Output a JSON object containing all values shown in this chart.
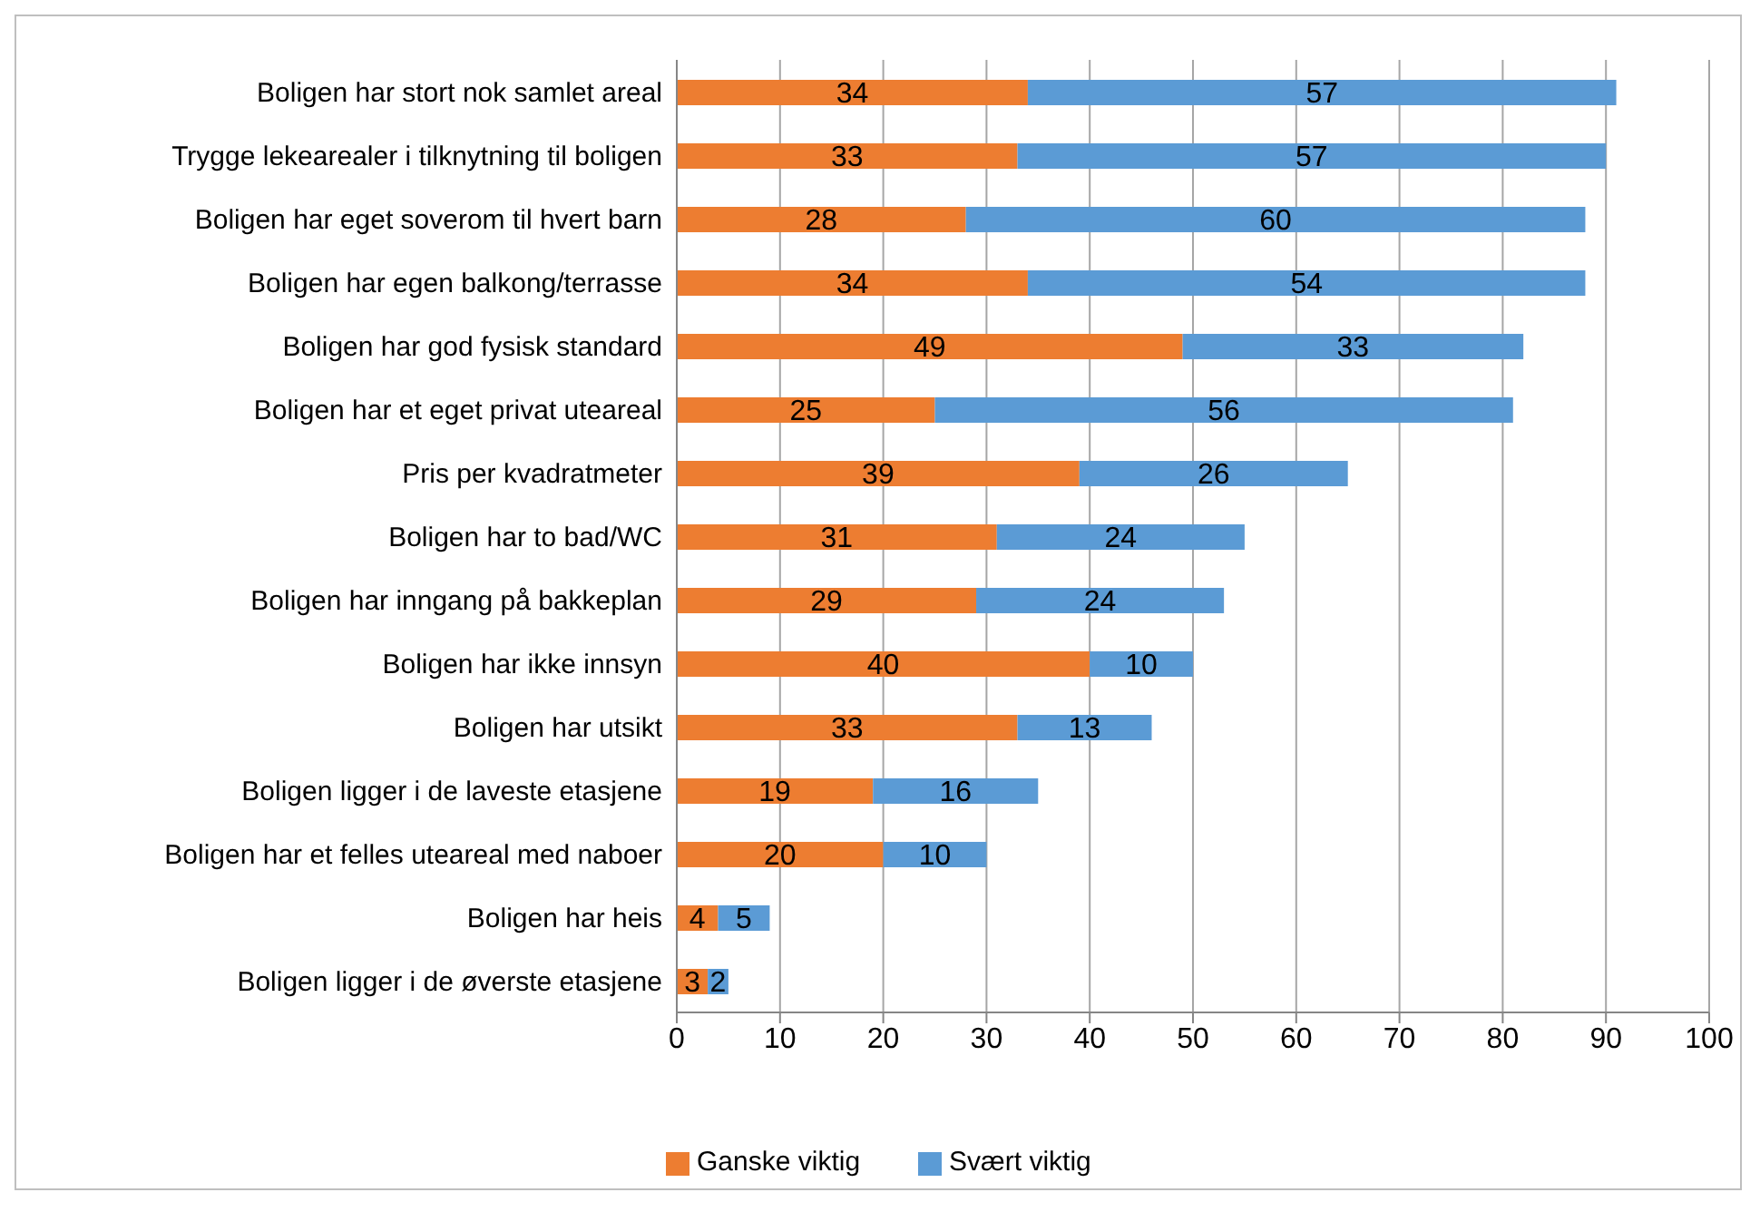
{
  "chart_data": {
    "type": "bar",
    "orientation": "horizontal",
    "stacked": true,
    "categories": [
      "Boligen har stort nok samlet areal",
      "Trygge lekearealer i tilknytning til boligen",
      "Boligen har eget soverom til hvert barn",
      "Boligen har egen balkong/terrasse",
      "Boligen har god fysisk standard",
      "Boligen har et eget privat uteareal",
      "Pris per kvadratmeter",
      "Boligen har to bad/WC",
      "Boligen har inngang på bakkeplan",
      "Boligen har ikke innsyn",
      "Boligen har utsikt",
      "Boligen ligger i de laveste etasjene",
      "Boligen har et felles uteareal med naboer",
      "Boligen har heis",
      "Boligen ligger i de øverste etasjene"
    ],
    "series": [
      {
        "name": "Ganske viktig",
        "color": "#ed7d31",
        "values": [
          34,
          33,
          28,
          34,
          49,
          25,
          39,
          31,
          29,
          40,
          33,
          19,
          20,
          4,
          3
        ]
      },
      {
        "name": "Svært viktig",
        "color": "#5b9bd5",
        "values": [
          57,
          57,
          60,
          54,
          33,
          56,
          26,
          24,
          24,
          10,
          13,
          16,
          10,
          5,
          2
        ]
      }
    ],
    "xlim": [
      0,
      100
    ],
    "xticks": [
      0,
      10,
      20,
      30,
      40,
      50,
      60,
      70,
      80,
      90,
      100
    ],
    "grid": "x",
    "legend": "bottom left",
    "data_labels": true
  }
}
